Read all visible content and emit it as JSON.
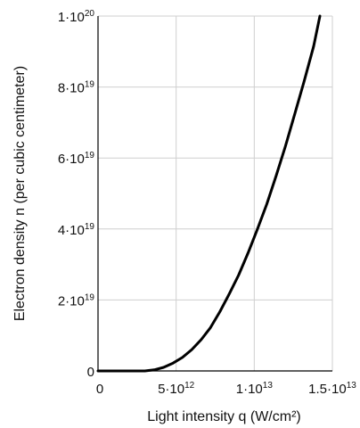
{
  "chart_data": {
    "type": "line",
    "xlabel": "Light intensity q (W/cm²)",
    "ylabel": "Electron density n (per cubic centimeter)",
    "xlim": [
      0,
      15000000000000
    ],
    "ylim": [
      0,
      100000000000000000000
    ],
    "grid": true,
    "x_ticks": [
      {
        "value": 0,
        "mantissa": "0",
        "exponent": ""
      },
      {
        "value": 5000000000000,
        "mantissa": "5·10",
        "exponent": "12"
      },
      {
        "value": 10000000000000,
        "mantissa": "1·10",
        "exponent": "13"
      },
      {
        "value": 15000000000000,
        "mantissa": "1.5·10",
        "exponent": "13"
      }
    ],
    "y_ticks": [
      {
        "value": 0,
        "mantissa": "0",
        "exponent": ""
      },
      {
        "value": 20000000000000000000,
        "mantissa": "2·10",
        "exponent": "19"
      },
      {
        "value": 40000000000000000000,
        "mantissa": "4·10",
        "exponent": "19"
      },
      {
        "value": 60000000000000000000,
        "mantissa": "6·10",
        "exponent": "19"
      },
      {
        "value": 80000000000000000000,
        "mantissa": "8·10",
        "exponent": "19"
      },
      {
        "value": 100000000000000000000,
        "mantissa": "1·10",
        "exponent": "20"
      }
    ],
    "series": [
      {
        "x": [
          0,
          3000000000000,
          3600000000000,
          4200000000000,
          4800000000000,
          5400000000000,
          6000000000000,
          6600000000000,
          7200000000000,
          7800000000000,
          8400000000000,
          9000000000000,
          9600000000000,
          10200000000000,
          10800000000000,
          11400000000000,
          12000000000000,
          12600000000000,
          13200000000000,
          13800000000000,
          14200000000000
        ],
        "y": [
          0,
          0,
          300000000000000000,
          1000000000000000000,
          2200000000000000000,
          3800000000000000000,
          6000000000000000000,
          8800000000000000000,
          12200000000000000000,
          16700000000000000000,
          21700000000000000000,
          27000000000000000000,
          33200000000000000000,
          39900000000000000000,
          47000000000000000000,
          55000000000000000000,
          63400000000000000000,
          72500000000000000000,
          81700000000000000000,
          91500000000000000000,
          100000000000000000000
        ]
      }
    ]
  }
}
